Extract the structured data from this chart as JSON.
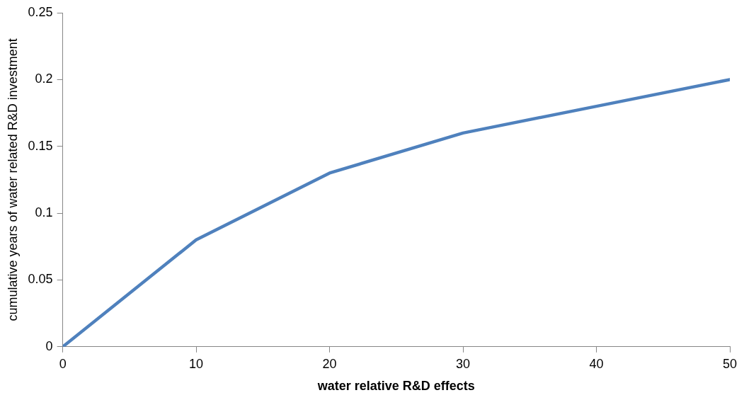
{
  "chart_data": {
    "type": "line",
    "xlabel": "water relative R&D effects",
    "ylabel": "cumulative years of water related R&D investment",
    "x": [
      0,
      10,
      20,
      30,
      40,
      50
    ],
    "series": [
      {
        "color": "#4f81bd",
        "values": [
          0,
          0.08,
          0.13,
          0.16,
          0.18,
          0.2
        ]
      }
    ],
    "xlim": [
      0,
      50
    ],
    "xticks": [
      0,
      10,
      20,
      30,
      40,
      50
    ],
    "ylim": [
      0,
      0.25
    ],
    "yticks": [
      0,
      0.05,
      0.1,
      0.15,
      0.2,
      0.25
    ],
    "grid": false,
    "legend": false,
    "marker": "none"
  }
}
